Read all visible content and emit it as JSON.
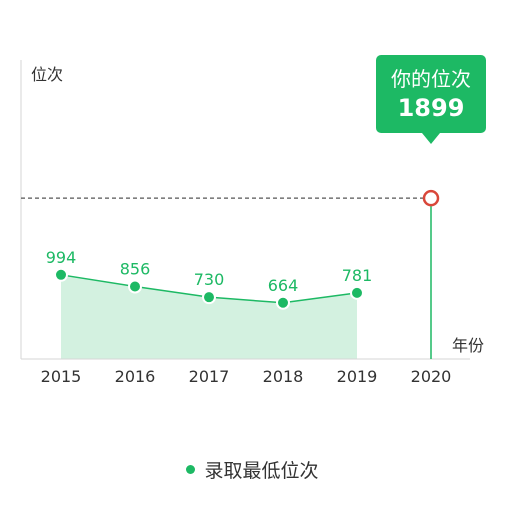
{
  "colors": {
    "accent": "#1db964",
    "area_fill": "#d3f1e0",
    "axis": "#d6d6d6",
    "reference_line": "#555555",
    "marker_ring": "#d9473a",
    "text": "#333333"
  },
  "chart_data": {
    "type": "area",
    "ylabel": "位次",
    "xlabel": "年份",
    "x": [
      "2015",
      "2016",
      "2017",
      "2018",
      "2019",
      "2020"
    ],
    "series": [
      {
        "name": "录取最低位次",
        "x": [
          "2015",
          "2016",
          "2017",
          "2018",
          "2019"
        ],
        "values": [
          994,
          856,
          730,
          664,
          781
        ]
      }
    ],
    "reference": {
      "x": "2020",
      "value": 1899
    },
    "callout": {
      "title": "你的位次",
      "value": "1899"
    },
    "ylim": [
      0,
      2300
    ],
    "grid": false,
    "legend_position": "bottom"
  }
}
